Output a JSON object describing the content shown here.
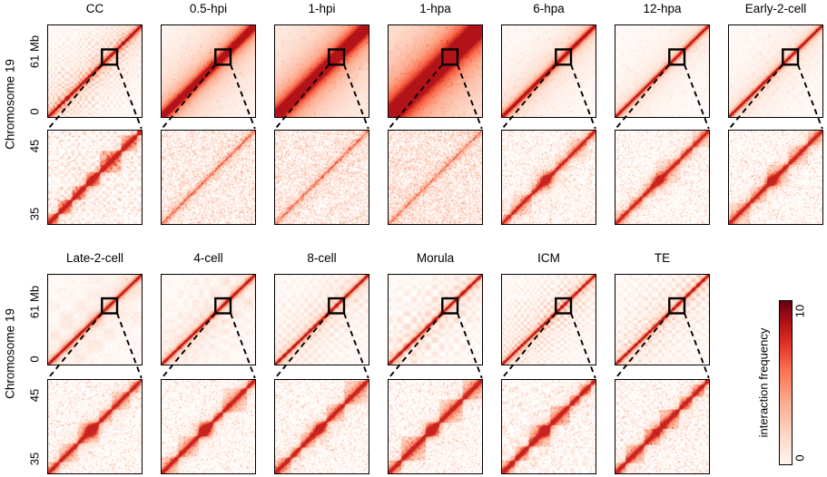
{
  "figure": {
    "rows": [
      {
        "ylabel": "Chromosome 19",
        "big_tick_top": "61 Mb",
        "big_tick_bottom": "0",
        "zoom_tick_top": "45",
        "zoom_tick_bottom": "35",
        "stages": [
          "CC",
          "0.5-hpi",
          "1-hpi",
          "1-hpa",
          "6-hpa",
          "12-hpa",
          "Early-2-cell"
        ]
      },
      {
        "ylabel": "Chromosome 19",
        "big_tick_top": "61 Mb",
        "big_tick_bottom": "0",
        "zoom_tick_top": "45",
        "zoom_tick_bottom": "35",
        "stages": [
          "Late-2-cell",
          "4-cell",
          "8-cell",
          "Morula",
          "ICM",
          "TE"
        ]
      }
    ],
    "colorbar": {
      "label": "interaction frequency",
      "tick_top": "10",
      "tick_bottom": "0"
    }
  },
  "chart_data": {
    "type": "heatmap",
    "title": "",
    "description": "Hi-C chromatin interaction frequency heatmaps of mouse Chromosome 19 across developmental stages. Each stage shows the full chromosome map (0-61 Mb) with a black inset square marking the 35-45 Mb region that is enlarged in the panel below, connected by dashed lines.",
    "chromosome": "Chromosome 19",
    "full_region_mb": [
      0,
      61
    ],
    "inset_region_mb": [
      35,
      45
    ],
    "colorbar": {
      "label": "interaction frequency",
      "min": 0,
      "max": 10,
      "color_low": "#fff5f0",
      "color_high": "#67000d"
    },
    "stages": [
      {
        "name": "CC",
        "appearance": {
          "spread": 2.6,
          "haze": 0.2,
          "comp": 0.5,
          "fine": 2.2,
          "diag": 0.95,
          "tad": 0.95,
          "blob": 0.25,
          "speckle": 0.1,
          "zoomComp": 0.35
        }
      },
      {
        "name": "0.5-hpi",
        "appearance": {
          "spread": 6.0,
          "haze": 0.38,
          "comp": 0.0,
          "fine": 1.0,
          "diag": 0.55,
          "tad": 0.0,
          "blob": 0.0,
          "speckle": 0.3,
          "zoomComp": 0.0
        }
      },
      {
        "name": "1-hpi",
        "appearance": {
          "spread": 9.0,
          "haze": 0.45,
          "comp": 0.0,
          "fine": 1.0,
          "diag": 0.5,
          "tad": 0.0,
          "blob": 0.0,
          "speckle": 0.33,
          "zoomComp": 0.0
        }
      },
      {
        "name": "1-hpa",
        "appearance": {
          "spread": 13.0,
          "haze": 0.52,
          "comp": 0.0,
          "fine": 1.0,
          "diag": 0.45,
          "tad": 0.0,
          "blob": 0.0,
          "speckle": 0.4,
          "zoomComp": 0.0
        }
      },
      {
        "name": "6-hpa",
        "appearance": {
          "spread": 3.2,
          "haze": 0.24,
          "comp": 0.0,
          "fine": 1.0,
          "diag": 0.9,
          "tad": 0.4,
          "blob": 0.75,
          "speckle": 0.16,
          "zoomComp": 0.0
        }
      },
      {
        "name": "12-hpa",
        "appearance": {
          "spread": 2.4,
          "haze": 0.16,
          "comp": 0.0,
          "fine": 1.0,
          "diag": 0.95,
          "tad": 0.4,
          "blob": 0.65,
          "speckle": 0.13,
          "zoomComp": 0.0
        }
      },
      {
        "name": "Early-2-cell",
        "appearance": {
          "spread": 2.4,
          "haze": 0.15,
          "comp": 0.1,
          "fine": 1.0,
          "diag": 0.95,
          "tad": 0.5,
          "blob": 0.6,
          "speckle": 0.13,
          "zoomComp": 0.0
        }
      },
      {
        "name": "Late-2-cell",
        "appearance": {
          "spread": 2.3,
          "haze": 0.14,
          "comp": 0.14,
          "fine": 1.0,
          "diag": 0.95,
          "tad": 0.55,
          "blob": 0.8,
          "speckle": 0.13,
          "zoomComp": 0.0
        }
      },
      {
        "name": "4-cell",
        "appearance": {
          "spread": 2.3,
          "haze": 0.13,
          "comp": 0.18,
          "fine": 1.1,
          "diag": 0.95,
          "tad": 0.6,
          "blob": 0.8,
          "speckle": 0.12,
          "zoomComp": 0.0
        }
      },
      {
        "name": "8-cell",
        "appearance": {
          "spread": 2.3,
          "haze": 0.13,
          "comp": 0.22,
          "fine": 1.2,
          "diag": 0.95,
          "tad": 0.65,
          "blob": 0.7,
          "speckle": 0.12,
          "zoomComp": 0.1
        }
      },
      {
        "name": "Morula",
        "appearance": {
          "spread": 2.3,
          "haze": 0.12,
          "comp": 0.3,
          "fine": 1.4,
          "diag": 0.95,
          "tad": 0.75,
          "blob": 0.6,
          "speckle": 0.11,
          "zoomComp": 0.15
        }
      },
      {
        "name": "ICM",
        "appearance": {
          "spread": 2.3,
          "haze": 0.12,
          "comp": 0.42,
          "fine": 1.6,
          "diag": 0.95,
          "tad": 0.8,
          "blob": 0.55,
          "speckle": 0.11,
          "zoomComp": 0.2
        }
      },
      {
        "name": "TE",
        "appearance": {
          "spread": 2.3,
          "haze": 0.12,
          "comp": 0.42,
          "fine": 1.8,
          "diag": 0.95,
          "tad": 0.8,
          "blob": 0.5,
          "speckle": 0.11,
          "zoomComp": 0.25
        }
      }
    ]
  }
}
